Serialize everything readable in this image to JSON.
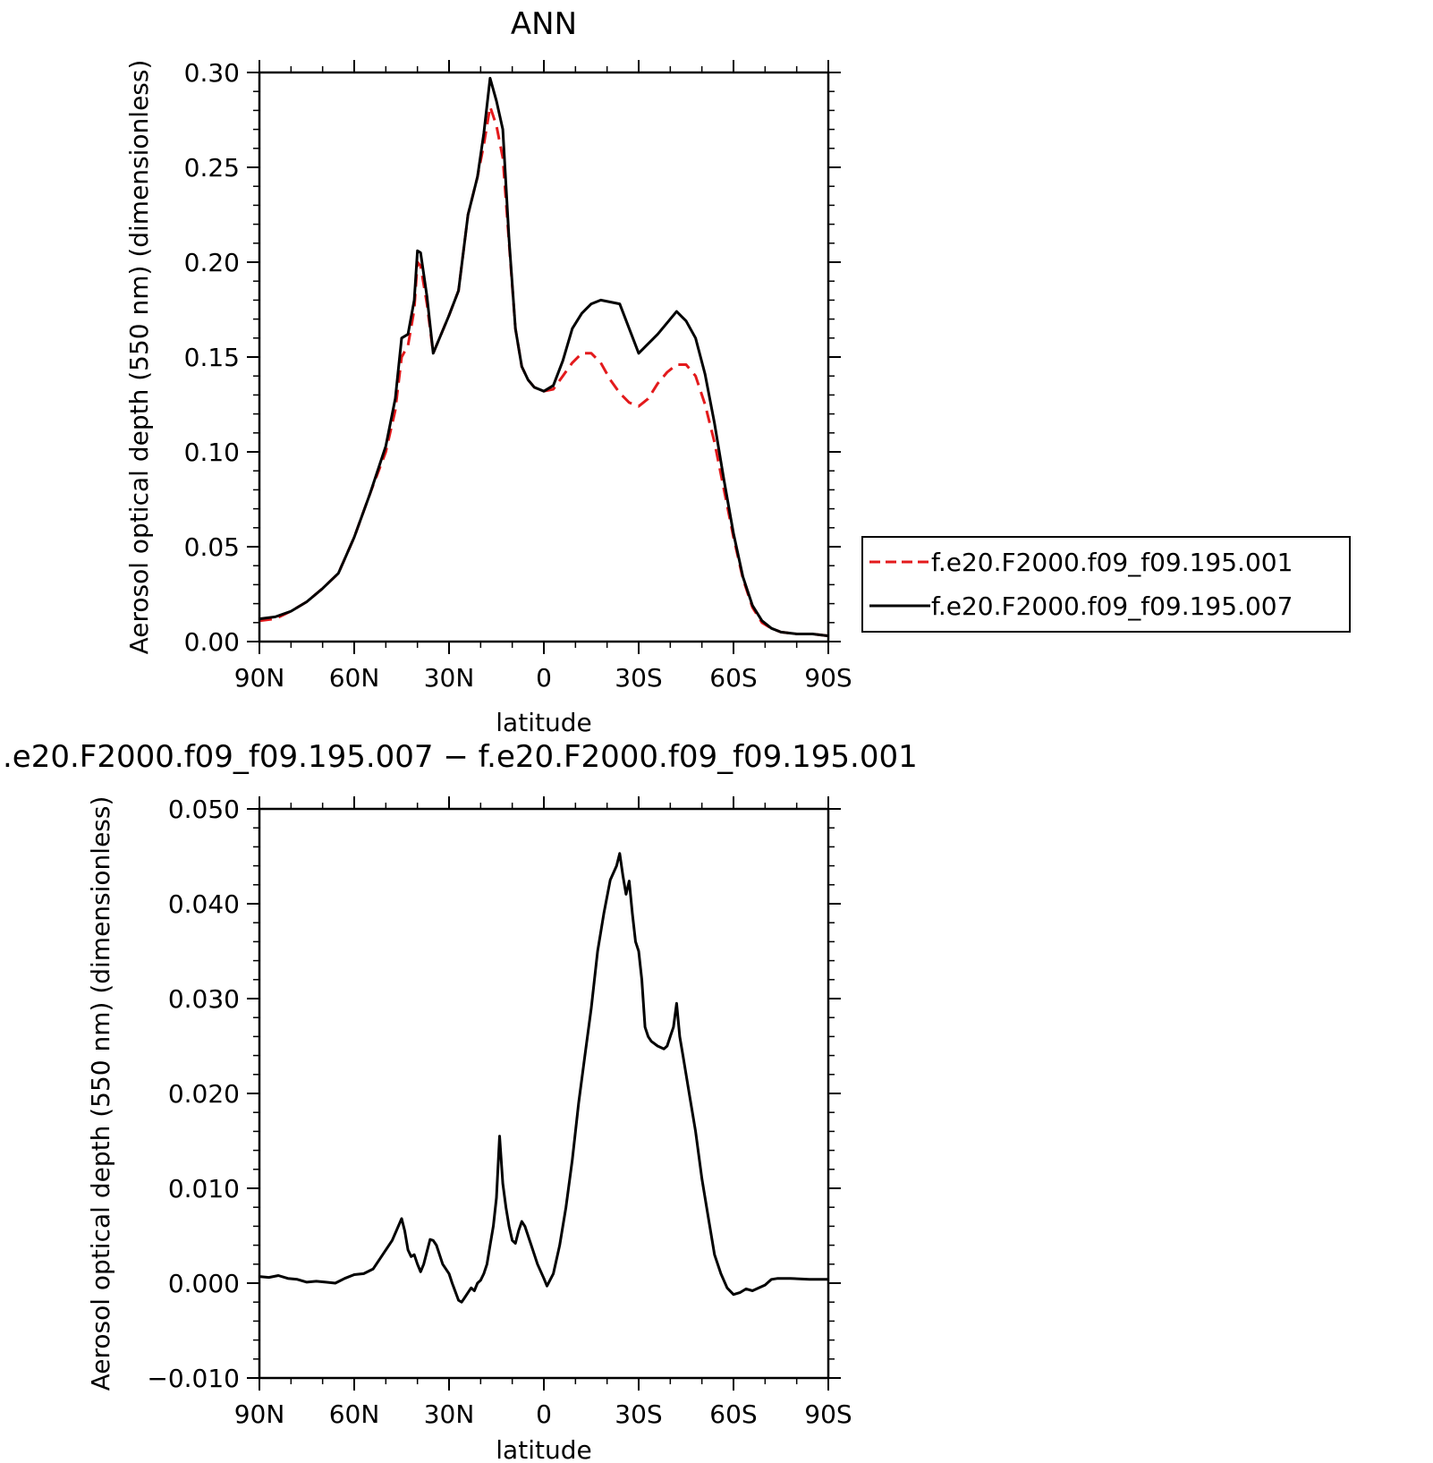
{
  "chart_data": [
    {
      "type": "line",
      "title": "ANN",
      "xlabel": "latitude",
      "ylabel": "Aerosol optical depth (550 nm) (dimensionless)",
      "ylim": [
        0,
        0.3
      ],
      "xlim": [
        -90,
        90
      ],
      "x_ticks": [
        -90,
        -60,
        -30,
        0,
        30,
        60,
        90
      ],
      "x_tick_labels": [
        "90N",
        "60N",
        "30N",
        "0",
        "30S",
        "60S",
        "90S"
      ],
      "y_ticks": [
        0,
        0.05,
        0.1,
        0.15,
        0.2,
        0.25,
        0.3
      ],
      "y_tick_labels": [
        "0.00",
        "0.05",
        "0.10",
        "0.15",
        "0.20",
        "0.25",
        "0.30"
      ],
      "legend_position": "right",
      "series": [
        {
          "name": "f.e20.F2000.f09_f09.195.001",
          "color": "#e31a1c",
          "dash": "dashed",
          "x": [
            -90,
            -85,
            -80,
            -75,
            -70,
            -65,
            -60,
            -55,
            -50,
            -47,
            -45,
            -43,
            -41,
            -40,
            -39,
            -37,
            -35,
            -33,
            -30,
            -27,
            -24,
            -21,
            -19,
            -17,
            -15,
            -13,
            -11,
            -9,
            -7,
            -5,
            -3,
            0,
            3,
            6,
            9,
            12,
            15,
            18,
            21,
            24,
            27,
            30,
            33,
            36,
            39,
            42,
            45,
            48,
            51,
            54,
            57,
            60,
            63,
            66,
            69,
            72,
            75,
            80,
            85,
            90
          ],
          "y": [
            0.011,
            0.012,
            0.016,
            0.021,
            0.028,
            0.036,
            0.055,
            0.078,
            0.1,
            0.122,
            0.15,
            0.156,
            0.175,
            0.2,
            0.198,
            0.178,
            0.152,
            0.16,
            0.172,
            0.185,
            0.225,
            0.245,
            0.262,
            0.282,
            0.272,
            0.255,
            0.21,
            0.165,
            0.145,
            0.138,
            0.134,
            0.132,
            0.133,
            0.14,
            0.147,
            0.152,
            0.152,
            0.147,
            0.138,
            0.131,
            0.126,
            0.124,
            0.128,
            0.136,
            0.142,
            0.146,
            0.146,
            0.14,
            0.125,
            0.105,
            0.08,
            0.055,
            0.033,
            0.018,
            0.01,
            0.007,
            0.005,
            0.004,
            0.004,
            0.003
          ]
        },
        {
          "name": "f.e20.F2000.f09_f09.195.007",
          "color": "#000000",
          "dash": "solid",
          "x": [
            -90,
            -85,
            -80,
            -75,
            -70,
            -65,
            -60,
            -55,
            -50,
            -47,
            -45,
            -43,
            -41,
            -40,
            -39,
            -37,
            -35,
            -33,
            -30,
            -27,
            -24,
            -21,
            -19,
            -17,
            -15,
            -13,
            -11,
            -9,
            -7,
            -5,
            -3,
            0,
            3,
            6,
            9,
            12,
            15,
            18,
            21,
            24,
            27,
            30,
            33,
            36,
            39,
            42,
            45,
            48,
            51,
            54,
            57,
            60,
            63,
            66,
            69,
            72,
            75,
            80,
            85,
            90
          ],
          "y": [
            0.012,
            0.013,
            0.016,
            0.021,
            0.028,
            0.036,
            0.055,
            0.078,
            0.103,
            0.128,
            0.16,
            0.162,
            0.18,
            0.206,
            0.205,
            0.182,
            0.152,
            0.16,
            0.172,
            0.185,
            0.225,
            0.245,
            0.268,
            0.297,
            0.285,
            0.27,
            0.212,
            0.165,
            0.145,
            0.138,
            0.134,
            0.132,
            0.135,
            0.148,
            0.165,
            0.173,
            0.178,
            0.18,
            0.179,
            0.178,
            0.165,
            0.152,
            0.157,
            0.162,
            0.168,
            0.174,
            0.169,
            0.16,
            0.141,
            0.115,
            0.085,
            0.057,
            0.034,
            0.019,
            0.011,
            0.007,
            0.005,
            0.004,
            0.004,
            0.003
          ]
        }
      ]
    },
    {
      "type": "line",
      "title": ".e20.F2000.f09_f09.195.007 − f.e20.F2000.f09_f09.195.001",
      "xlabel": "latitude",
      "ylabel": "Aerosol optical depth (550 nm) (dimensionless)",
      "ylim": [
        -0.01,
        0.05
      ],
      "xlim": [
        -90,
        90
      ],
      "x_ticks": [
        -90,
        -60,
        -30,
        0,
        30,
        60,
        90
      ],
      "x_tick_labels": [
        "90N",
        "60N",
        "30N",
        "0",
        "30S",
        "60S",
        "90S"
      ],
      "y_ticks": [
        -0.01,
        0.0,
        0.01,
        0.02,
        0.03,
        0.04,
        0.05
      ],
      "y_tick_labels": [
        "−0.010",
        "0.000",
        "0.010",
        "0.020",
        "0.030",
        "0.040",
        "0.050"
      ],
      "series": [
        {
          "color": "#000000",
          "dash": "solid",
          "x": [
            -90,
            -87,
            -84,
            -81,
            -78,
            -75,
            -72,
            -69,
            -66,
            -63,
            -60,
            -57,
            -54,
            -51,
            -48,
            -45,
            -44,
            -43,
            -42,
            -41,
            -40,
            -39,
            -38,
            -36,
            -35,
            -34,
            -32,
            -30,
            -29,
            -27,
            -26,
            -25,
            -24,
            -23,
            -22,
            -21,
            -20,
            -19,
            -18,
            -17,
            -16,
            -15,
            -14,
            -13,
            -12,
            -11,
            -10,
            -9,
            -8,
            -7,
            -6,
            -4,
            -2,
            0,
            1,
            3,
            5,
            7,
            9,
            11,
            13,
            15,
            17,
            19,
            21,
            23,
            24,
            25,
            26,
            27,
            28,
            29,
            30,
            31,
            32,
            33,
            34,
            36,
            38,
            39,
            40,
            41,
            42,
            43,
            44,
            46,
            48,
            50,
            52,
            54,
            56,
            58,
            60,
            62,
            64,
            66,
            68,
            70,
            72,
            74,
            78,
            84,
            90
          ],
          "y": [
            0.0007,
            0.0006,
            0.0008,
            0.0005,
            0.0004,
            0.0001,
            0.0002,
            0.0001,
            0.0,
            0.0005,
            0.0009,
            0.001,
            0.0015,
            0.003,
            0.0045,
            0.0068,
            0.0055,
            0.0035,
            0.0028,
            0.003,
            0.002,
            0.0012,
            0.002,
            0.0046,
            0.0045,
            0.004,
            0.002,
            0.001,
            0.0,
            -0.0018,
            -0.002,
            -0.0015,
            -0.001,
            -0.0005,
            -0.0008,
            0.0,
            0.0003,
            0.001,
            0.002,
            0.004,
            0.006,
            0.009,
            0.0155,
            0.0105,
            0.008,
            0.006,
            0.0045,
            0.0042,
            0.0055,
            0.0065,
            0.006,
            0.004,
            0.002,
            0.0005,
            -0.0003,
            0.001,
            0.004,
            0.008,
            0.013,
            0.019,
            0.024,
            0.029,
            0.035,
            0.039,
            0.0425,
            0.044,
            0.0453,
            0.043,
            0.041,
            0.0424,
            0.039,
            0.036,
            0.035,
            0.032,
            0.027,
            0.026,
            0.0255,
            0.025,
            0.0247,
            0.025,
            0.026,
            0.027,
            0.0295,
            0.026,
            0.024,
            0.02,
            0.016,
            0.011,
            0.007,
            0.003,
            0.001,
            -0.0005,
            -0.0012,
            -0.001,
            -0.0006,
            -0.0008,
            -0.0005,
            -0.0002,
            0.0004,
            0.0005,
            0.0005,
            0.0004,
            0.0004
          ]
        }
      ]
    }
  ]
}
